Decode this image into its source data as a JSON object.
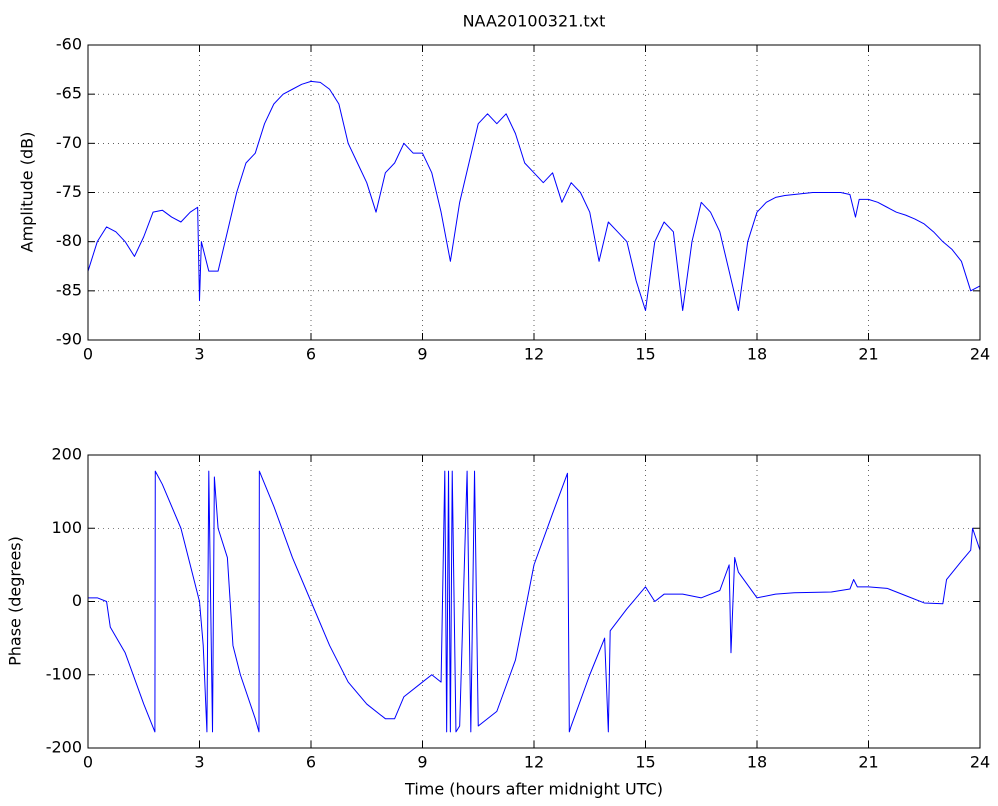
{
  "chart_data": [
    {
      "type": "line",
      "title": "NAA20100321.txt",
      "ylabel": "Amplitude (dB)",
      "xlim": [
        0,
        24
      ],
      "xticks": [
        0,
        3,
        6,
        9,
        12,
        15,
        18,
        21,
        24
      ],
      "ylim": [
        -90,
        -60
      ],
      "yticks": [
        -90,
        -85,
        -80,
        -75,
        -70,
        -65,
        -60
      ],
      "grid": true,
      "series": [
        {
          "color": "#0000ff",
          "x": [
            0,
            0.25,
            0.5,
            0.75,
            1,
            1.25,
            1.5,
            1.75,
            2,
            2.25,
            2.5,
            2.75,
            2.95,
            3,
            3.05,
            3.25,
            3.5,
            3.75,
            4,
            4.25,
            4.5,
            4.75,
            5,
            5.25,
            5.5,
            5.75,
            6,
            6.25,
            6.5,
            6.75,
            7,
            7.25,
            7.5,
            7.75,
            8,
            8.25,
            8.5,
            8.75,
            9,
            9.25,
            9.5,
            9.75,
            10,
            10.25,
            10.5,
            10.75,
            11,
            11.25,
            11.5,
            11.75,
            12,
            12.25,
            12.5,
            12.75,
            13,
            13.25,
            13.5,
            13.75,
            14,
            14.25,
            14.5,
            14.75,
            15,
            15.25,
            15.5,
            15.75,
            16,
            16.25,
            16.5,
            16.75,
            17,
            17.25,
            17.5,
            17.75,
            18,
            18.25,
            18.5,
            18.75,
            19,
            19.25,
            19.5,
            19.75,
            20,
            20.25,
            20.5,
            20.65,
            20.75,
            21,
            21.25,
            21.5,
            21.75,
            22,
            22.25,
            22.5,
            22.75,
            23,
            23.25,
            23.5,
            23.75,
            24
          ],
          "values": [
            -83,
            -80,
            -78.5,
            -79,
            -80,
            -81.5,
            -79.5,
            -77,
            -76.8,
            -77.5,
            -78,
            -77,
            -76.5,
            -86,
            -80,
            -83,
            -83,
            -79,
            -75,
            -72,
            -71,
            -68,
            -66,
            -65,
            -64.5,
            -64,
            -63.7,
            -63.8,
            -64.5,
            -66,
            -70,
            -72,
            -74,
            -77,
            -73,
            -72,
            -70,
            -71,
            -71,
            -73,
            -77,
            -82,
            -76,
            -72,
            -68,
            -67,
            -68,
            -67,
            -69,
            -72,
            -73,
            -74,
            -73,
            -76,
            -74,
            -75,
            -77,
            -82,
            -78,
            -79,
            -80,
            -84,
            -87,
            -80,
            -78,
            -79,
            -87,
            -80,
            -76,
            -77,
            -79,
            -83,
            -87,
            -80,
            -77,
            -76,
            -75.5,
            -75.3,
            -75.2,
            -75.1,
            -75,
            -75,
            -75,
            -75,
            -75.2,
            -77.5,
            -75.7,
            -75.7,
            -76,
            -76.5,
            -77,
            -77.3,
            -77.7,
            -78.2,
            -79,
            -80,
            -80.8,
            -82,
            -85,
            -84.5
          ]
        }
      ]
    },
    {
      "type": "line",
      "xlabel": "Time (hours after midnight UTC)",
      "ylabel": "Phase (degrees)",
      "xlim": [
        0,
        24
      ],
      "xticks": [
        0,
        3,
        6,
        9,
        12,
        15,
        18,
        21,
        24
      ],
      "ylim": [
        -200,
        200
      ],
      "yticks": [
        -200,
        -100,
        0,
        100,
        200
      ],
      "grid": true,
      "series": [
        {
          "color": "#0000ff",
          "x": [
            0,
            0.25,
            0.5,
            0.6,
            1,
            1.5,
            1.8,
            1.81,
            2,
            2.5,
            3,
            3.1,
            3.2,
            3.25,
            3.35,
            3.4,
            3.5,
            3.75,
            3.9,
            4.1,
            4.5,
            4.6,
            4.61,
            5,
            5.5,
            6,
            6.5,
            7,
            7.5,
            8,
            8.25,
            8.5,
            9,
            9.25,
            9.5,
            9.6,
            9.65,
            9.7,
            9.75,
            9.8,
            9.9,
            10,
            10.2,
            10.3,
            10.4,
            10.5,
            11,
            11.5,
            12,
            12.5,
            12.9,
            12.95,
            13,
            13.5,
            13.9,
            14,
            14.05,
            14.5,
            15,
            15.25,
            15.5,
            16,
            16.5,
            17,
            17.25,
            17.3,
            17.4,
            17.5,
            18,
            18.5,
            19,
            20,
            20.5,
            20.6,
            20.7,
            21,
            21.5,
            22,
            22.5,
            23,
            23.1,
            23.5,
            23.75,
            23.8,
            24
          ],
          "values": [
            5,
            5,
            0,
            -35,
            -70,
            -140,
            -178,
            178,
            160,
            100,
            0,
            -60,
            -178,
            178,
            -178,
            170,
            100,
            60,
            -60,
            -100,
            -160,
            -178,
            178,
            130,
            60,
            0,
            -60,
            -110,
            -140,
            -160,
            -160,
            -130,
            -110,
            -100,
            -110,
            178,
            -178,
            178,
            -178,
            178,
            -178,
            -170,
            178,
            -178,
            178,
            -170,
            -150,
            -80,
            50,
            120,
            175,
            -178,
            -170,
            -100,
            -50,
            -178,
            -40,
            -10,
            20,
            0,
            10,
            10,
            5,
            15,
            50,
            -70,
            60,
            40,
            5,
            10,
            12,
            13,
            17,
            30,
            20,
            20,
            18,
            8,
            -2,
            -3,
            30,
            55,
            70,
            100,
            70
          ]
        }
      ]
    }
  ]
}
